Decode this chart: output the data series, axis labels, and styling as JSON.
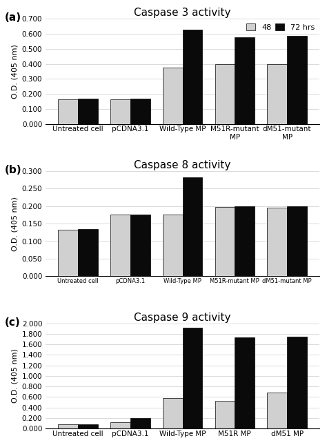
{
  "panel_a": {
    "title": "Caspase 3 activity",
    "label": "(a)",
    "categories": [
      "Untreated cell",
      "pCDNA3.1",
      "Wild-Type MP",
      "M51R-mutant\nMP",
      "dM51-mutant\nMP"
    ],
    "values_48": [
      0.165,
      0.163,
      0.375,
      0.4,
      0.398
    ],
    "values_72": [
      0.167,
      0.17,
      0.63,
      0.575,
      0.585
    ],
    "ylim": [
      0,
      0.7
    ],
    "yticks": [
      0.0,
      0.1,
      0.2,
      0.3,
      0.4,
      0.5,
      0.6,
      0.7
    ],
    "ylabel": "O.D. (405 nm)"
  },
  "panel_b": {
    "title": "Caspase 8 activity",
    "label": "(b)",
    "categories": [
      "Untreated cell",
      "pCDNA3.1",
      "Wild-Type MP",
      "M51R-mutant MP",
      "dM51-mutant MP"
    ],
    "values_48": [
      0.132,
      0.175,
      0.175,
      0.197,
      0.195
    ],
    "values_72": [
      0.134,
      0.176,
      0.282,
      0.199,
      0.199
    ],
    "ylim": [
      0,
      0.3
    ],
    "yticks": [
      0.0,
      0.05,
      0.1,
      0.15,
      0.2,
      0.25,
      0.3
    ],
    "ylabel": "O.D. (405 nm)"
  },
  "panel_c": {
    "title": "Caspase 9 activity",
    "label": "(c)",
    "categories": [
      "Untreated cell",
      "pCDNA3.1",
      "Wild-Type MP",
      "M51R MP",
      "dM51 MP"
    ],
    "values_48": [
      0.08,
      0.12,
      0.58,
      0.53,
      0.68
    ],
    "values_72": [
      0.085,
      0.2,
      1.92,
      1.74,
      1.75
    ],
    "ylim": [
      0,
      2.0
    ],
    "yticks": [
      0.0,
      0.2,
      0.4,
      0.6,
      0.8,
      1.0,
      1.2,
      1.4,
      1.6,
      1.8,
      2.0
    ],
    "ylabel": "O.D. (405 nm)"
  },
  "color_48": "#d0d0d0",
  "color_72": "#0a0a0a",
  "bar_width": 0.38,
  "legend_labels": [
    "48",
    "72 hrs"
  ],
  "fig_width": 4.74,
  "fig_height": 6.45,
  "dpi": 100
}
